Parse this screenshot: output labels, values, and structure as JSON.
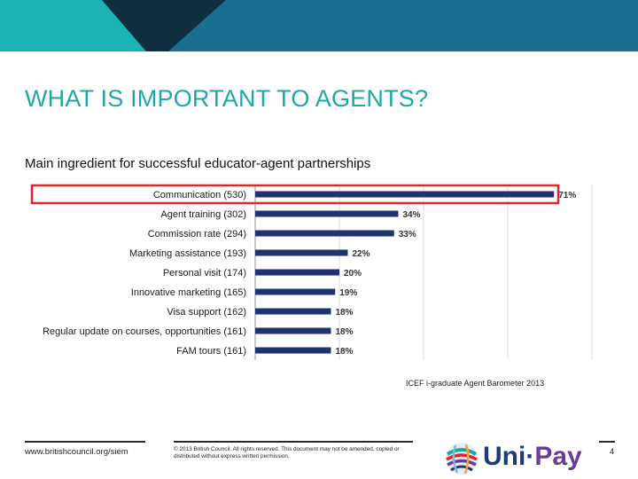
{
  "slide": {
    "title": "WHAT IS IMPORTANT TO AGENTS?",
    "subtitle": "Main ingredient for successful educator-agent partnerships",
    "source": "ICEF i-graduate Agent Barometer 2013",
    "page_number": "4"
  },
  "footer": {
    "website": "www.britishcouncil.org/siem",
    "copyright": "© 2013 British Council. All rights reserved. This document may not be amended, copied or distributed without express written permission."
  },
  "logo": {
    "text_main": "Uni",
    "text_dot": "·",
    "text_pay": "Pay"
  },
  "colors": {
    "title": "#1fa7a8",
    "bar": "#1f3370",
    "highlight": "#e0252b",
    "banner_teal": "#1ab2b3",
    "banner_blue": "#1a6e92",
    "banner_dark": "#0f2f40"
  },
  "chart_data": {
    "type": "bar",
    "orientation": "horizontal",
    "categories": [
      "Communication (530)",
      "Agent training (302)",
      "Commission rate (294)",
      "Marketing assistance (193)",
      "Personal visit (174)",
      "Innovative marketing (165)",
      "Visa support (162)",
      "Regular update on courses, opportunities (161)",
      "FAM tours (161)"
    ],
    "values": [
      71,
      34,
      33,
      22,
      20,
      19,
      18,
      18,
      18
    ],
    "value_labels": [
      "71%",
      "34%",
      "33%",
      "22%",
      "20%",
      "19%",
      "18%",
      "18%",
      "18%"
    ],
    "xlim": [
      0,
      80
    ],
    "grid": true,
    "highlighted_category": "Communication (530)"
  }
}
